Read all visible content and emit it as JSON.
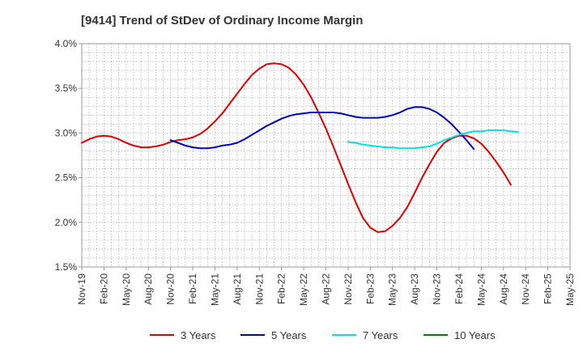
{
  "chart_data": {
    "type": "line",
    "title": "[9414]  Trend of StDev of Ordinary Income Margin",
    "xlabel": "",
    "ylabel": "",
    "ylim": [
      0.015,
      0.04
    ],
    "y_ticks": [
      0.015,
      0.02,
      0.025,
      0.03,
      0.035,
      0.04
    ],
    "y_tick_labels": [
      "1.5%",
      "2.0%",
      "2.5%",
      "3.0%",
      "3.5%",
      "4.0%"
    ],
    "x_tick_labels": [
      "Nov-19",
      "Feb-20",
      "May-20",
      "Aug-20",
      "Nov-20",
      "Feb-21",
      "May-21",
      "Aug-21",
      "Nov-21",
      "Feb-22",
      "May-22",
      "Aug-22",
      "Nov-22",
      "Feb-23",
      "May-23",
      "Aug-23",
      "Nov-23",
      "Feb-24",
      "May-24",
      "Aug-24",
      "Nov-24",
      "Feb-25",
      "May-25"
    ],
    "grid": true,
    "legend_position": "bottom",
    "series": [
      {
        "name": "3 Years",
        "color": "#e00000",
        "points": [
          [
            "Nov-19",
            0.0289
          ],
          [
            "Dec-19",
            0.0293
          ],
          [
            "Jan-20",
            0.0296
          ],
          [
            "Feb-20",
            0.0297
          ],
          [
            "Mar-20",
            0.0296
          ],
          [
            "Apr-20",
            0.0293
          ],
          [
            "May-20",
            0.0289
          ],
          [
            "Jun-20",
            0.0286
          ],
          [
            "Jul-20",
            0.0284
          ],
          [
            "Aug-20",
            0.0284
          ],
          [
            "Sep-20",
            0.0285
          ],
          [
            "Oct-20",
            0.0287
          ],
          [
            "Nov-20",
            0.029
          ],
          [
            "Dec-20",
            0.0292
          ],
          [
            "Jan-21",
            0.0293
          ],
          [
            "Feb-21",
            0.0295
          ],
          [
            "Mar-21",
            0.0299
          ],
          [
            "Apr-21",
            0.0305
          ],
          [
            "May-21",
            0.0313
          ],
          [
            "Jun-21",
            0.0322
          ],
          [
            "Jul-21",
            0.0333
          ],
          [
            "Aug-21",
            0.0344
          ],
          [
            "Sep-21",
            0.0355
          ],
          [
            "Oct-21",
            0.0365
          ],
          [
            "Nov-21",
            0.0372
          ],
          [
            "Dec-21",
            0.0377
          ],
          [
            "Jan-22",
            0.0378
          ],
          [
            "Feb-22",
            0.0377
          ],
          [
            "Mar-22",
            0.0373
          ],
          [
            "Apr-22",
            0.0365
          ],
          [
            "May-22",
            0.0354
          ],
          [
            "Jun-22",
            0.034
          ],
          [
            "Jul-22",
            0.0323
          ],
          [
            "Aug-22",
            0.0305
          ],
          [
            "Sep-22",
            0.0285
          ],
          [
            "Oct-22",
            0.0264
          ],
          [
            "Nov-22",
            0.0243
          ],
          [
            "Dec-22",
            0.0223
          ],
          [
            "Jan-23",
            0.0205
          ],
          [
            "Feb-23",
            0.0194
          ],
          [
            "Mar-23",
            0.0189
          ],
          [
            "Apr-23",
            0.019
          ],
          [
            "May-23",
            0.0196
          ],
          [
            "Jun-23",
            0.0205
          ],
          [
            "Jul-23",
            0.0217
          ],
          [
            "Aug-23",
            0.0233
          ],
          [
            "Sep-23",
            0.025
          ],
          [
            "Oct-23",
            0.0265
          ],
          [
            "Nov-23",
            0.0279
          ],
          [
            "Dec-23",
            0.0289
          ],
          [
            "Jan-24",
            0.0294
          ],
          [
            "Feb-24",
            0.0297
          ],
          [
            "Mar-24",
            0.0297
          ],
          [
            "Apr-24",
            0.0294
          ],
          [
            "May-24",
            0.0288
          ],
          [
            "Jun-24",
            0.0279
          ],
          [
            "Jul-24",
            0.0268
          ],
          [
            "Aug-24",
            0.0256
          ],
          [
            "Sep-24",
            0.0242
          ]
        ]
      },
      {
        "name": "5 Years",
        "color": "#0000c0",
        "points": [
          [
            "Nov-20",
            0.0292
          ],
          [
            "Dec-20",
            0.0289
          ],
          [
            "Jan-21",
            0.0286
          ],
          [
            "Feb-21",
            0.0284
          ],
          [
            "Mar-21",
            0.0283
          ],
          [
            "Apr-21",
            0.0283
          ],
          [
            "May-21",
            0.0284
          ],
          [
            "Jun-21",
            0.0286
          ],
          [
            "Jul-21",
            0.0287
          ],
          [
            "Aug-21",
            0.0289
          ],
          [
            "Sep-21",
            0.0293
          ],
          [
            "Oct-21",
            0.0298
          ],
          [
            "Nov-21",
            0.0303
          ],
          [
            "Dec-21",
            0.0308
          ],
          [
            "Jan-22",
            0.0312
          ],
          [
            "Feb-22",
            0.0316
          ],
          [
            "Mar-22",
            0.0319
          ],
          [
            "Apr-22",
            0.0321
          ],
          [
            "May-22",
            0.0322
          ],
          [
            "Jun-22",
            0.0323
          ],
          [
            "Jul-22",
            0.0323
          ],
          [
            "Aug-22",
            0.0323
          ],
          [
            "Sep-22",
            0.0323
          ],
          [
            "Oct-22",
            0.0322
          ],
          [
            "Nov-22",
            0.032
          ],
          [
            "Dec-22",
            0.0318
          ],
          [
            "Jan-23",
            0.0317
          ],
          [
            "Feb-23",
            0.0317
          ],
          [
            "Mar-23",
            0.0317
          ],
          [
            "Apr-23",
            0.0318
          ],
          [
            "May-23",
            0.032
          ],
          [
            "Jun-23",
            0.0323
          ],
          [
            "Jul-23",
            0.0327
          ],
          [
            "Aug-23",
            0.0329
          ],
          [
            "Sep-23",
            0.0329
          ],
          [
            "Oct-23",
            0.0327
          ],
          [
            "Nov-23",
            0.0323
          ],
          [
            "Dec-23",
            0.0317
          ],
          [
            "Jan-24",
            0.031
          ],
          [
            "Feb-24",
            0.0301
          ],
          [
            "Mar-24",
            0.0292
          ],
          [
            "Apr-24",
            0.0282
          ]
        ]
      },
      {
        "name": "7 Years",
        "color": "#00e0e0",
        "points": [
          [
            "Nov-22",
            0.029
          ],
          [
            "Dec-22",
            0.0289
          ],
          [
            "Jan-23",
            0.0287
          ],
          [
            "Feb-23",
            0.0286
          ],
          [
            "Mar-23",
            0.0285
          ],
          [
            "Apr-23",
            0.0284
          ],
          [
            "May-23",
            0.0284
          ],
          [
            "Jun-23",
            0.0283
          ],
          [
            "Jul-23",
            0.0283
          ],
          [
            "Aug-23",
            0.0283
          ],
          [
            "Sep-23",
            0.0284
          ],
          [
            "Oct-23",
            0.0285
          ],
          [
            "Nov-23",
            0.0288
          ],
          [
            "Dec-23",
            0.0292
          ],
          [
            "Jan-24",
            0.0295
          ],
          [
            "Feb-24",
            0.0298
          ],
          [
            "Mar-24",
            0.03
          ],
          [
            "Apr-24",
            0.0302
          ],
          [
            "May-24",
            0.0302
          ],
          [
            "Jun-24",
            0.0303
          ],
          [
            "Jul-24",
            0.0303
          ],
          [
            "Aug-24",
            0.0303
          ],
          [
            "Sep-24",
            0.0302
          ],
          [
            "Oct-24",
            0.0301
          ]
        ]
      },
      {
        "name": "10 Years",
        "color": "#008000",
        "points": []
      }
    ]
  }
}
